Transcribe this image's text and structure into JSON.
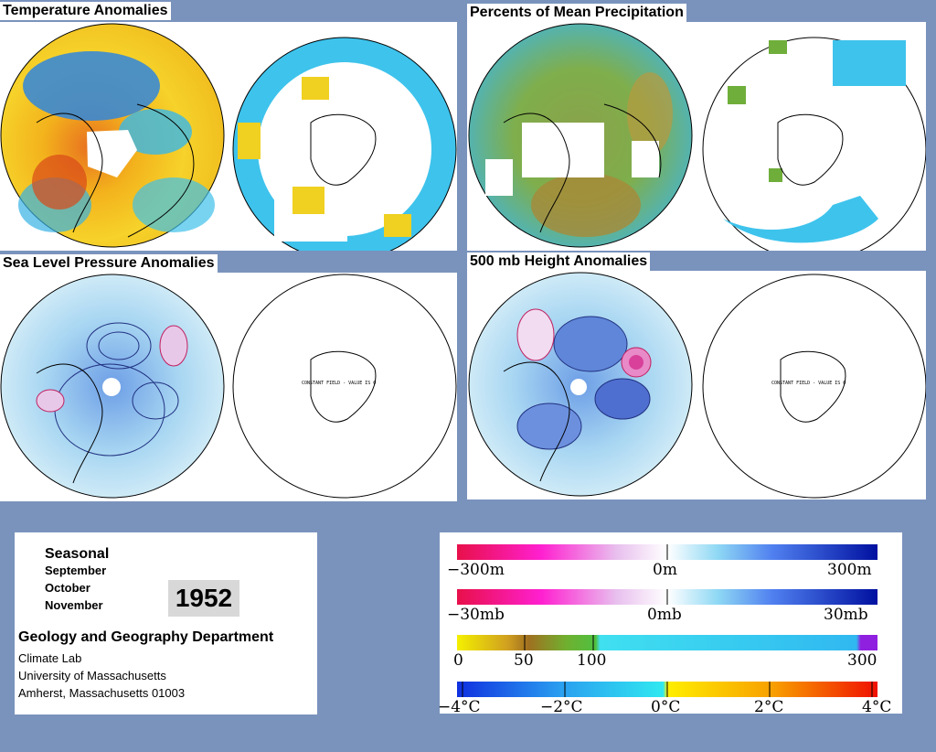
{
  "panels": {
    "temperature": {
      "title": "Temperature Anomalies"
    },
    "precipitation": {
      "title": "Percents of Mean Precipitation"
    },
    "slp": {
      "title": "Sea Level Pressure Anomalies",
      "note": "CONSTANT FIELD - VALUE IS 0"
    },
    "height500": {
      "title": "500 mb Height Anomalies",
      "note": "CONSTANT FIELD - VALUE IS 0"
    }
  },
  "info": {
    "period": "Seasonal",
    "months": [
      "September",
      "October",
      "November"
    ],
    "year": "1952",
    "department": "Geology and Geography Department",
    "lab": "Climate Lab",
    "university": "University of Massachusetts",
    "address": "Amherst, Massachusetts 01003"
  },
  "legends": {
    "height": {
      "labels": [
        "−300m",
        "0m",
        "300m"
      ]
    },
    "pressure": {
      "labels": [
        "−30mb",
        "0mb",
        "30mb"
      ]
    },
    "precip": {
      "labels": [
        "0",
        "50",
        "100",
        "300"
      ]
    },
    "temp": {
      "labels": [
        "−4°C",
        "−2°C",
        "0°C",
        "2°C",
        "4°C"
      ]
    }
  },
  "colors": {
    "background": "#7a93bd",
    "warm": "#f0a020",
    "cold": "#2e7fe0",
    "land_outline": "#000000"
  }
}
